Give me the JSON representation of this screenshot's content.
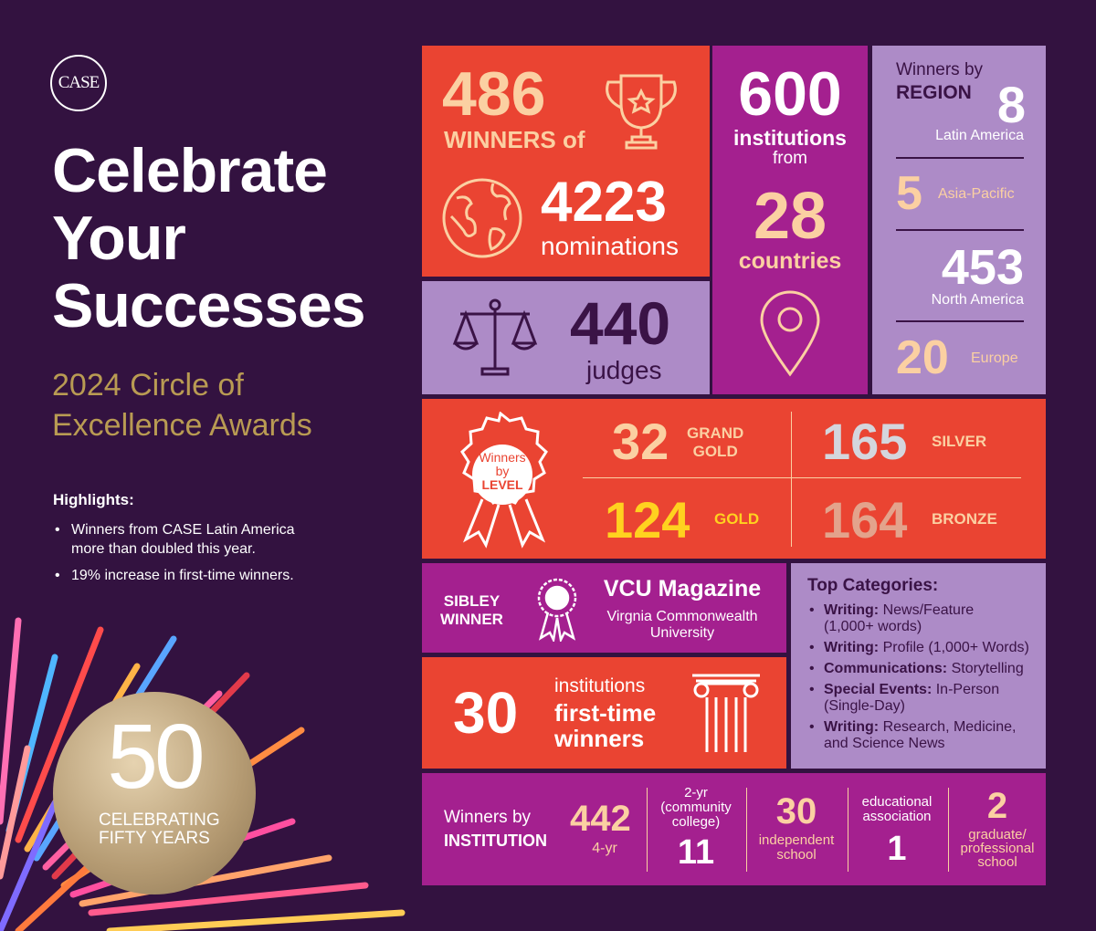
{
  "colors": {
    "background": "#331240",
    "red": "#ea4432",
    "magenta": "#a4208f",
    "lavender": "#ad8bc7",
    "peach": "#fbd0a2",
    "gold": "#b99b53",
    "yellow": "#ffd21f",
    "dark": "#3a1346"
  },
  "left": {
    "logo": "CASE",
    "headline": [
      "Celebrate",
      "Your",
      "Successes"
    ],
    "subtitle": [
      "2024 Circle of",
      "Excellence Awards"
    ],
    "highlights_title": "Highlights:",
    "highlights": [
      [
        "Winners from CASE Latin America",
        "more than doubled this year."
      ],
      [
        "19% increase in first-time winners."
      ]
    ],
    "badge": {
      "number": "50",
      "line1": "CELEBRATING",
      "line2": "FIFTY YEARS"
    }
  },
  "winners": {
    "number": "486",
    "label": "WINNERS of",
    "icon": "trophy-icon"
  },
  "nominations": {
    "number": "4223",
    "label": "nominations",
    "icon": "globe-icon"
  },
  "judges": {
    "number": "440",
    "label": "judges",
    "icon": "scales-icon"
  },
  "institutions": {
    "number": "600",
    "label": "institutions",
    "sub": "from",
    "countries_number": "28",
    "countries_label": "countries",
    "icon": "location-pin-icon"
  },
  "region": {
    "title1": "Winners by",
    "title2": "REGION",
    "items": [
      {
        "value": "8",
        "name": "Latin America"
      },
      {
        "value": "5",
        "name": "Asia-Pacific"
      },
      {
        "value": "453",
        "name": "North America"
      },
      {
        "value": "20",
        "name": "Europe"
      }
    ]
  },
  "level": {
    "rosette": [
      "Winners",
      "by",
      "LEVEL"
    ],
    "items": [
      {
        "value": "32",
        "name1": "GRAND",
        "name2": "GOLD"
      },
      {
        "value": "165",
        "name1": "SILVER",
        "name2": ""
      },
      {
        "value": "124",
        "name1": "GOLD",
        "name2": ""
      },
      {
        "value": "164",
        "name1": "BRONZE",
        "name2": ""
      }
    ]
  },
  "sibley": {
    "label1": "SIBLEY",
    "label2": "WINNER",
    "title": "VCU Magazine",
    "sub1": "Virgnia Commonwealth",
    "sub2": "University",
    "icon": "ribbon-award-icon"
  },
  "firsttime": {
    "number": "30",
    "line1": "institutions",
    "line2": "first-time",
    "line3": "winners",
    "icon": "column-icon"
  },
  "categories": {
    "title": "Top Categories:",
    "items": [
      {
        "bold": "Writing:",
        "rest": " News/Feature",
        "rest2": "(1,000+ words)"
      },
      {
        "bold": "Writing:",
        "rest": " Profile (1,000+ Words)",
        "rest2": ""
      },
      {
        "bold": "Communications:",
        "rest": " Storytelling",
        "rest2": ""
      },
      {
        "bold": "Special Events:",
        "rest": " In-Person",
        "rest2": "(Single-Day)"
      },
      {
        "bold": "Writing:",
        "rest": " Research, Medicine,",
        "rest2": "and Science News"
      }
    ]
  },
  "institution": {
    "title1": "Winners by",
    "title2": "INSTITUTION",
    "fouryr_value": "442",
    "fouryr_label": "4-yr",
    "twoyr_label": [
      "2-yr",
      "(community",
      "college)"
    ],
    "twoyr_value": "11",
    "indep_value": "30",
    "indep_label": [
      "independent",
      "school"
    ],
    "edu_label": [
      "educational",
      "association"
    ],
    "edu_value": "1",
    "grad_value": "2",
    "grad_label": [
      "graduate/",
      "professional",
      "school"
    ]
  }
}
